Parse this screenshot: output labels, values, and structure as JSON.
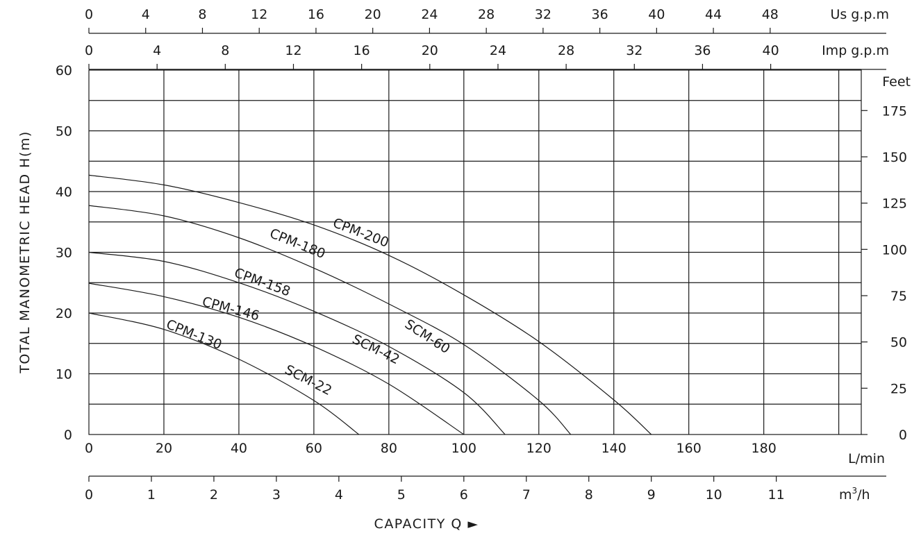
{
  "chart_data": {
    "type": "line",
    "ylabel": "TOTAL MANOMETRIC HEAD  H(m)",
    "xlabel": "CAPACITY  Q ►",
    "xlim": [
      0,
      206
    ],
    "ylim": [
      0,
      60
    ],
    "grid": true,
    "axes": {
      "lmin": {
        "unit": "L/min",
        "ticks": [
          0,
          20,
          40,
          60,
          80,
          100,
          120,
          140,
          160,
          180
        ]
      },
      "m3h": {
        "unit_main": "m",
        "unit_sup": "3",
        "unit_tail": "/h",
        "ticks": [
          0,
          1,
          2,
          3,
          4,
          5,
          6,
          7,
          8,
          9,
          10,
          11
        ]
      },
      "usgpm": {
        "unit": "Us g.p.m",
        "ticks": [
          0,
          4,
          8,
          12,
          16,
          20,
          24,
          28,
          32,
          36,
          40,
          44,
          48
        ]
      },
      "impgpm": {
        "unit": "Imp g.p.m",
        "ticks": [
          0,
          4,
          8,
          12,
          16,
          20,
          24,
          28,
          32,
          36,
          40
        ]
      },
      "head_m": {
        "ticks": [
          0,
          10,
          20,
          30,
          40,
          50,
          60
        ]
      },
      "head_ft": {
        "unit": "Feet",
        "ticks": [
          0,
          25,
          50,
          75,
          100,
          125,
          150,
          175
        ]
      }
    },
    "series": [
      {
        "name": "CPM-200",
        "x": [
          0,
          20,
          40,
          60,
          80,
          100,
          120,
          140,
          150
        ],
        "y": [
          42.7,
          41.1,
          38.2,
          34.5,
          29.5,
          23.0,
          15.3,
          5.7,
          0
        ]
      },
      {
        "name": "CPM-180",
        "x": [
          0,
          20,
          40,
          60,
          80,
          100,
          120,
          128.5
        ],
        "y": [
          37.7,
          36.0,
          32.4,
          27.4,
          21.5,
          14.8,
          5.6,
          0
        ]
      },
      {
        "name": "CPM-158",
        "x": [
          0,
          20,
          40,
          60,
          80,
          100,
          111
        ],
        "y": [
          30.0,
          28.5,
          25.0,
          20.3,
          14.5,
          6.9,
          0
        ]
      },
      {
        "name": "CPM-146",
        "x": [
          0,
          20,
          40,
          60,
          80,
          100
        ],
        "y": [
          24.9,
          22.7,
          19.3,
          14.5,
          8.3,
          0
        ]
      },
      {
        "name": "CPM-130",
        "x": [
          0,
          20,
          40,
          60,
          72
        ],
        "y": [
          20.0,
          17.3,
          12.4,
          5.6,
          0
        ]
      }
    ],
    "annotations": [
      {
        "text": "SCM-60",
        "x": 84,
        "y": 17.8
      },
      {
        "text": "SCM-42",
        "x": 70,
        "y": 15.2
      },
      {
        "text": "SCM-22",
        "x": 52,
        "y": 10.2
      }
    ]
  }
}
